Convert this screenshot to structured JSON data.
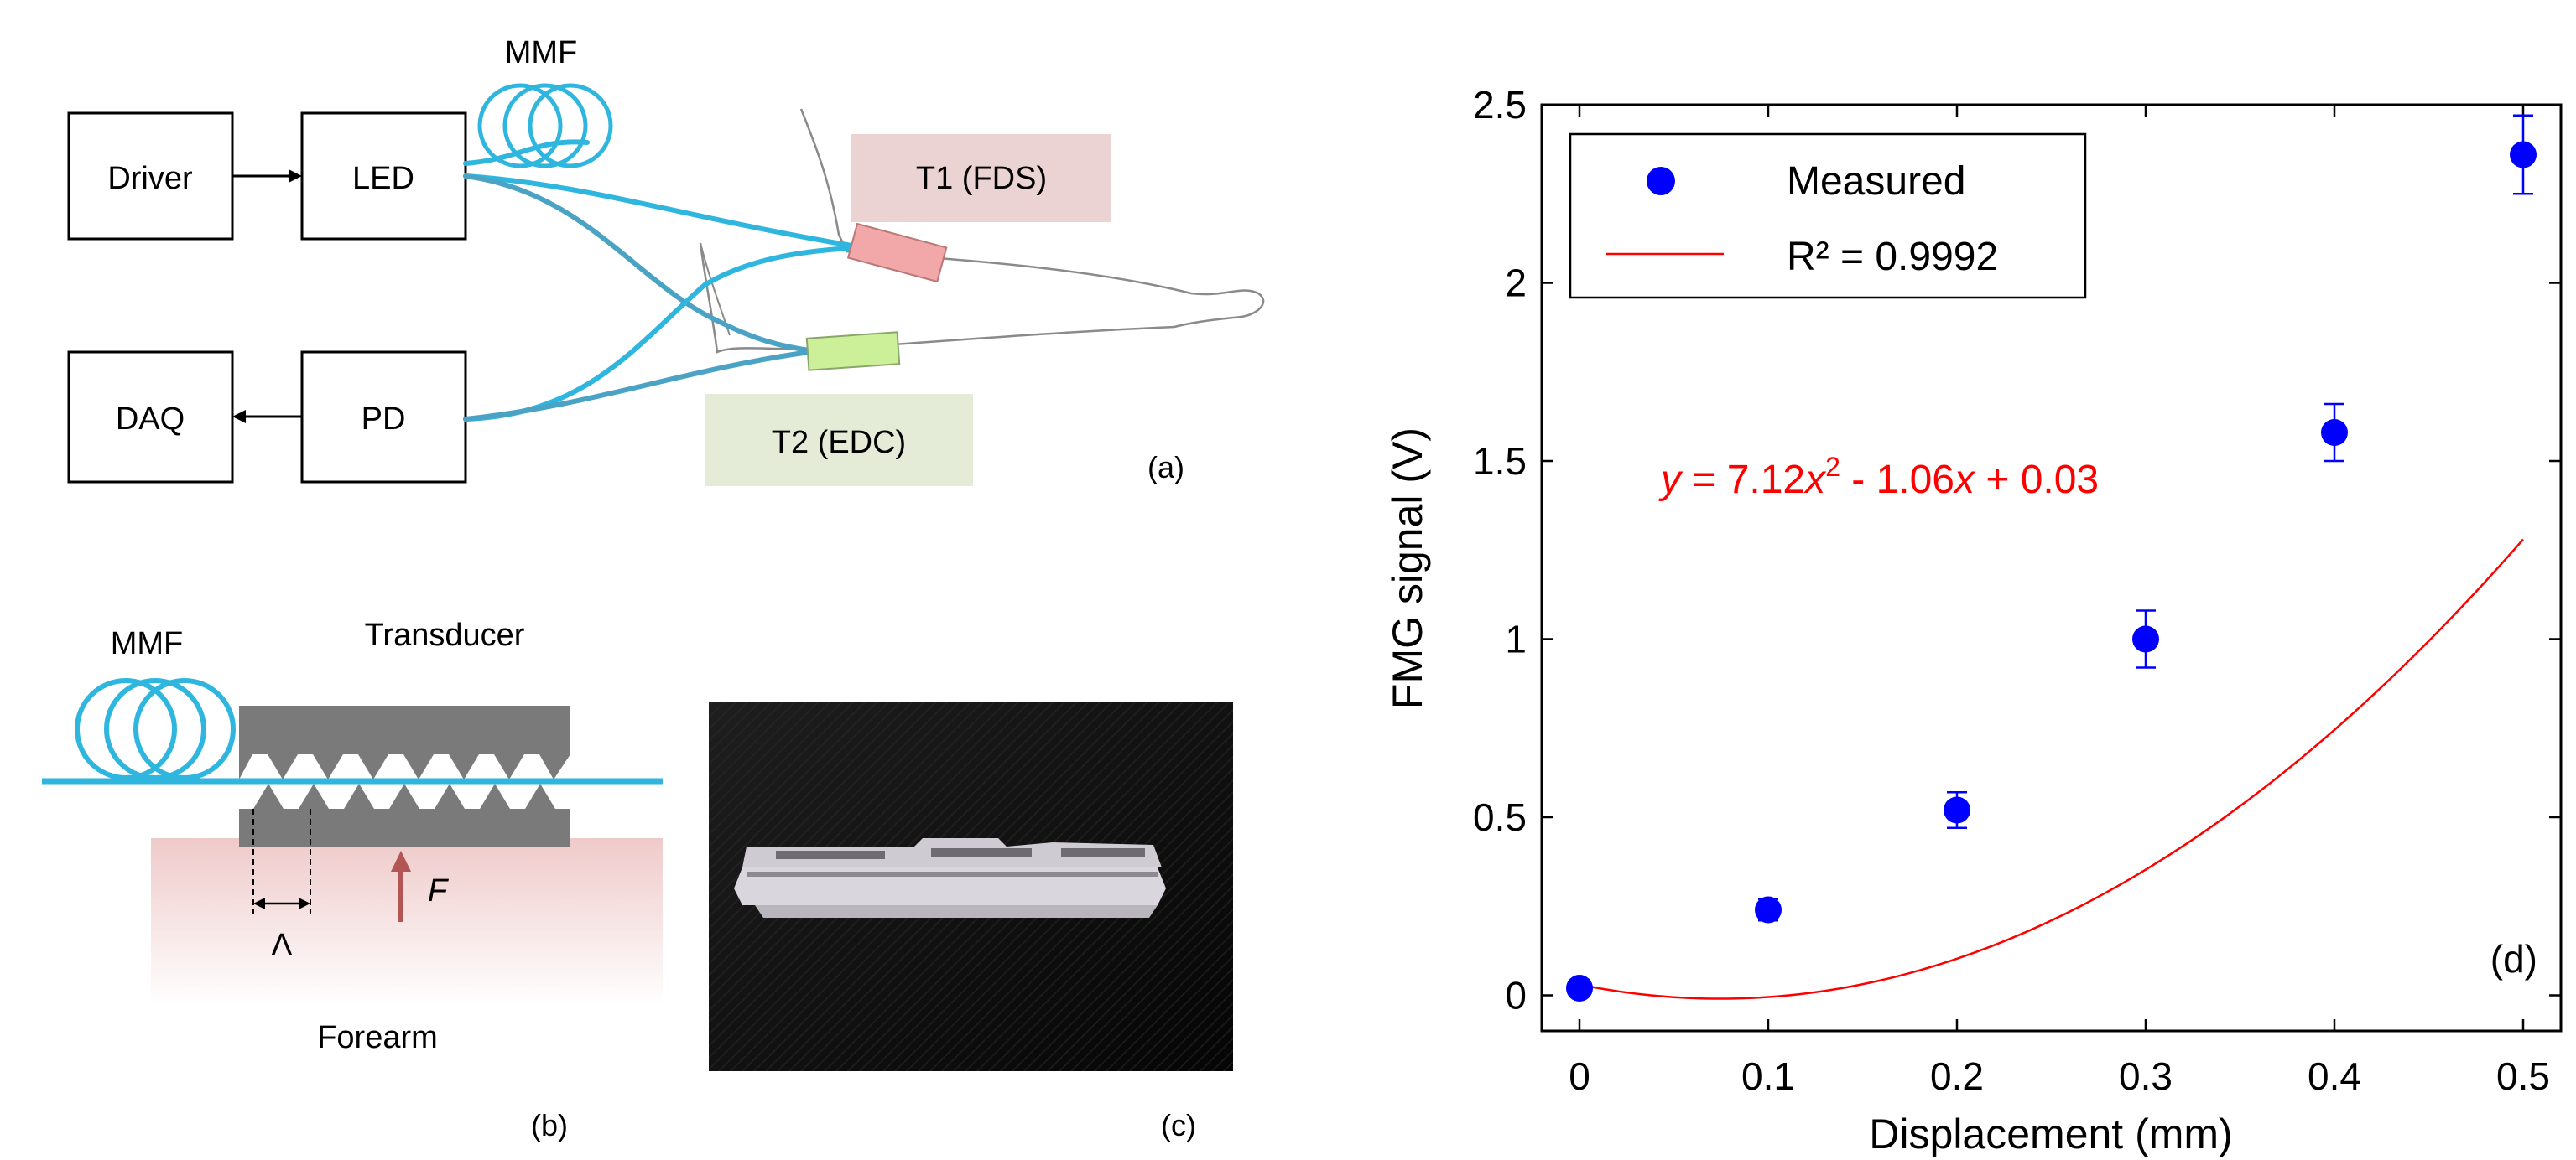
{
  "panel_a": {
    "blocks": {
      "driver": "Driver",
      "led": "LED",
      "daq": "DAQ",
      "pd": "PD"
    },
    "fiber_label": "MMF",
    "transducer_labels": {
      "t1": "T1 (FDS)",
      "t2": "T2 (EDC)"
    },
    "panel_label": "(a)",
    "colors": {
      "fiber": "#2fb6df",
      "fiber_dark": "#4aa3c4",
      "t1": "#f2a8a8",
      "t2": "#ccef9a",
      "t1_box": "#ecd3d3",
      "t2_box": "#e4ecd7"
    }
  },
  "panel_b": {
    "fiber_label": "MMF",
    "transducer_label": "Transducer",
    "force_label": "F",
    "period_label": "Λ",
    "tissue_label": "Forearm",
    "panel_label": "(b)",
    "colors": {
      "fiber": "#2fb6df",
      "plate": "#7a7a7a",
      "force": "#b35555",
      "tissue": "#f0d6d6"
    }
  },
  "panel_c": {
    "panel_label": "(c)"
  },
  "chart_data": {
    "type": "scatter",
    "xlabel": "Displacement (mm)",
    "ylabel": "FMG signal (V)",
    "xlim": [
      -0.02,
      0.52
    ],
    "ylim": [
      -0.1,
      2.5
    ],
    "xticks": [
      0,
      0.1,
      0.2,
      0.3,
      0.4,
      0.5
    ],
    "xtick_labels": [
      "0",
      "0.1",
      "0.2",
      "0.3",
      "0.4",
      "0.5"
    ],
    "yticks": [
      0,
      0.5,
      1,
      1.5,
      2,
      2.5
    ],
    "ytick_labels": [
      "0",
      "0.5",
      "1",
      "1.5",
      "2",
      "2.5"
    ],
    "series": [
      {
        "name": "Measured",
        "x": [
          0,
          0.1,
          0.2,
          0.3,
          0.4,
          0.5
        ],
        "y": [
          0.02,
          0.24,
          0.52,
          1.0,
          1.58,
          2.36
        ],
        "error": [
          0.02,
          0.03,
          0.05,
          0.08,
          0.08,
          0.11
        ],
        "color": "#0000ff"
      }
    ],
    "fit": {
      "name": "R² = 0.9992",
      "a": 7.12,
      "b": -1.06,
      "c": 0.03,
      "color": "#ff0000"
    },
    "equation": {
      "y": "y",
      "lead": " = 7.12",
      "x1": "x",
      "sup": "2",
      "mid": " - 1.06",
      "x2": "x",
      "tail": " + 0.03"
    },
    "legend": {
      "measured": "Measured",
      "fit": "R² = 0.9992",
      "position": "top-left"
    },
    "panel_label": "(d)"
  }
}
